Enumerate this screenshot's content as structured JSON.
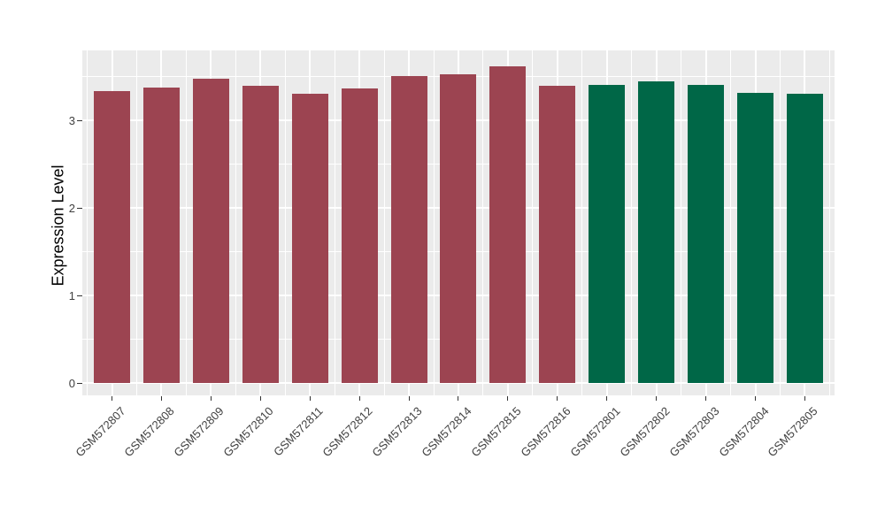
{
  "chart_data": {
    "type": "bar",
    "title": "",
    "xlabel": "",
    "ylabel": "Expression Level",
    "categories": [
      "GSM572807",
      "GSM572808",
      "GSM572809",
      "GSM572810",
      "GSM572811",
      "GSM572812",
      "GSM572813",
      "GSM572814",
      "GSM572815",
      "GSM572816",
      "GSM572801",
      "GSM572802",
      "GSM572803",
      "GSM572804",
      "GSM572805"
    ],
    "values": [
      3.33,
      3.37,
      3.47,
      3.39,
      3.3,
      3.36,
      3.51,
      3.53,
      3.62,
      3.39,
      3.4,
      3.44,
      3.4,
      3.31,
      3.3
    ],
    "groups": [
      "group1",
      "group1",
      "group1",
      "group1",
      "group1",
      "group1",
      "group1",
      "group1",
      "group1",
      "group1",
      "group2",
      "group2",
      "group2",
      "group2",
      "group2"
    ],
    "group_colors": {
      "group1": "#9C4451",
      "group2": "#006747"
    },
    "ylim": [
      0,
      3.8
    ],
    "yticks": [
      0,
      1,
      2,
      3
    ],
    "yticks_minor": [
      0.5,
      1.5,
      2.5,
      3.5
    ],
    "grid": "on",
    "legend": "none",
    "panel_background": "#EBEBEB",
    "grid_color": "#FFFFFF",
    "axis_text_color": "#404040",
    "bar_width_fraction": 0.75
  }
}
